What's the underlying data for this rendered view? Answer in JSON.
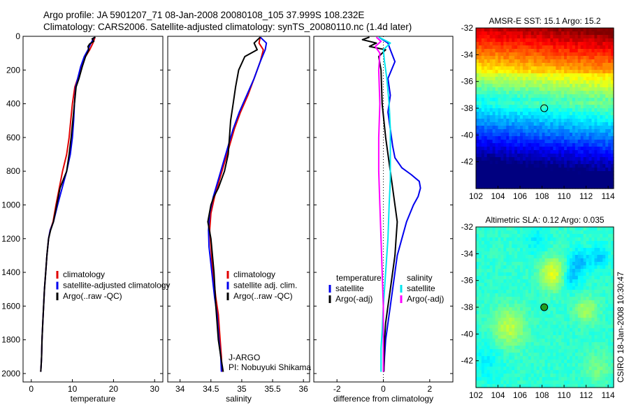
{
  "header": {
    "line1": "Argo profile: JA 5901207_71 08-Jan-2008 20080108_105 37.999S 108.232E",
    "line2": "Climatology: CARS2006. Satellite-adjusted climatology: synTS_20080110.nc (1.4d later)"
  },
  "side_label": "CSIRO 18-Jan-2008 10:30:47",
  "colors": {
    "red": "#e00000",
    "blue": "#0000ee",
    "black": "#000000",
    "cyan": "#00e5ee",
    "magenta": "#ff00ff"
  },
  "chart_data": [
    {
      "id": "temperature",
      "type": "line",
      "xlabel": "temperature",
      "ylabel": "",
      "xlim": [
        -2,
        32
      ],
      "ylim": [
        0,
        2050
      ],
      "y_inverted": true,
      "xticks": [
        0,
        10,
        20,
        30
      ],
      "yticks": [
        0,
        200,
        400,
        600,
        800,
        1000,
        1200,
        1400,
        1600,
        1800,
        2000
      ],
      "legend": [
        "climatology",
        "satellite-adjusted climatology",
        "Argo(..raw -QC)"
      ],
      "series": [
        {
          "name": "climatology",
          "color": "red",
          "x": [
            15.5,
            15.3,
            15,
            14.2,
            13.2,
            12.2,
            11.3,
            10.6,
            10,
            9.6,
            9.2,
            8.6,
            7.6,
            6.8,
            6,
            5.3,
            4.6,
            4.2,
            3.8,
            3.5,
            3.2,
            3,
            2.8,
            2.6,
            2.5,
            2.4,
            2.3
          ],
          "y": [
            5,
            20,
            40,
            80,
            120,
            180,
            250,
            300,
            400,
            500,
            600,
            700,
            800,
            900,
            1000,
            1100,
            1150,
            1200,
            1300,
            1400,
            1500,
            1600,
            1700,
            1800,
            1900,
            1950,
            1990
          ]
        },
        {
          "name": "satellite-adjusted climatology",
          "color": "blue",
          "x": [
            15.3,
            15,
            14.5,
            13.8,
            12.9,
            12,
            11.3,
            10.8,
            10.5,
            10.3,
            10,
            9.5,
            8.6,
            7.5,
            6.4,
            5.4,
            4.6,
            4.2,
            3.8,
            3.5,
            3.2,
            3,
            2.8,
            2.6,
            2.5,
            2.4,
            2.3
          ],
          "y": [
            5,
            20,
            40,
            80,
            120,
            180,
            250,
            300,
            400,
            500,
            600,
            700,
            800,
            900,
            1000,
            1100,
            1150,
            1200,
            1300,
            1400,
            1500,
            1600,
            1700,
            1800,
            1900,
            1950,
            1990
          ]
        },
        {
          "name": "Argo(..raw -QC)",
          "color": "black",
          "x": [
            15.6,
            14.8,
            15.2,
            14.2,
            13.8,
            14,
            13.2,
            12.4,
            11.6,
            10.9,
            10.5,
            10.1,
            9.7,
            9.2,
            8.6,
            7.8,
            7,
            6.2,
            5.4,
            4.7,
            4.2,
            3.8,
            3.5,
            3.2,
            3,
            2.8,
            2.6,
            2.5,
            2.4,
            2.3
          ],
          "y": [
            5,
            15,
            30,
            45,
            60,
            80,
            120,
            180,
            250,
            300,
            400,
            500,
            600,
            700,
            800,
            850,
            900,
            1000,
            1100,
            1150,
            1200,
            1300,
            1400,
            1500,
            1600,
            1700,
            1800,
            1900,
            1950,
            1990
          ]
        }
      ]
    },
    {
      "id": "salinity",
      "type": "line",
      "xlabel": "salinity",
      "ylabel": "",
      "xlim": [
        33.8,
        36.1
      ],
      "ylim": [
        0,
        2050
      ],
      "y_inverted": true,
      "xticks": [
        34,
        34.5,
        35,
        35.5,
        36
      ],
      "yticks": [
        0,
        200,
        400,
        600,
        800,
        1000,
        1200,
        1400,
        1600,
        1800,
        2000
      ],
      "legend": [
        "climatology",
        "satellite adj. clim.",
        "Argo(..raw -QC)"
      ],
      "series": [
        {
          "name": "climatology",
          "color": "red",
          "x": [
            35.3,
            35.28,
            35.35,
            35.3,
            35.2,
            35.1,
            34.98,
            34.88,
            34.8,
            34.72,
            34.64,
            34.56,
            34.5,
            34.48,
            34.5,
            34.52,
            34.55,
            34.58,
            34.62,
            34.65,
            34.67,
            34.68
          ],
          "y": [
            5,
            40,
            80,
            150,
            250,
            350,
            450,
            550,
            650,
            750,
            850,
            950,
            1050,
            1150,
            1250,
            1350,
            1450,
            1550,
            1650,
            1800,
            1900,
            1990
          ]
        },
        {
          "name": "satellite adj. clim.",
          "color": "blue",
          "x": [
            35.3,
            35.4,
            35.38,
            35.3,
            35.2,
            35.08,
            34.96,
            34.86,
            34.78,
            34.7,
            34.62,
            34.54,
            34.48,
            34.46,
            34.47,
            34.5,
            34.53,
            34.56,
            34.6,
            34.63,
            34.66,
            34.67
          ],
          "y": [
            5,
            40,
            80,
            150,
            250,
            350,
            450,
            550,
            650,
            750,
            850,
            950,
            1050,
            1150,
            1250,
            1350,
            1450,
            1550,
            1650,
            1800,
            1900,
            1990
          ]
        },
        {
          "name": "Argo(..raw -QC)",
          "color": "black",
          "x": [
            35.3,
            35.2,
            35.25,
            35.05,
            34.95,
            34.9,
            34.86,
            34.82,
            34.8,
            34.78,
            34.72,
            34.62,
            34.55,
            34.5,
            34.45,
            34.5,
            34.55,
            34.58,
            34.62,
            34.66,
            34.7
          ],
          "y": [
            5,
            40,
            80,
            120,
            200,
            300,
            400,
            500,
            600,
            700,
            800,
            900,
            950,
            1000,
            1100,
            1200,
            1400,
            1600,
            1800,
            1900,
            1990
          ]
        }
      ]
    },
    {
      "id": "difference",
      "type": "line",
      "xlabel": "difference from climatology",
      "ylabel": "",
      "xlim": [
        -3,
        3
      ],
      "ylim": [
        0,
        2050
      ],
      "y_inverted": true,
      "xticks": [
        -2,
        0,
        2
      ],
      "yticks": [
        0,
        200,
        400,
        600,
        800,
        1000,
        1200,
        1400,
        1600,
        1800,
        2000
      ],
      "legend_title_left": "temperature",
      "legend_title_right": "salinity",
      "legend": [
        "satellite",
        "Argo(-adj)",
        "satellite",
        "Argo(-adj)"
      ],
      "series": [
        {
          "name": "satellite",
          "color": "blue",
          "x": [
            -0.2,
            0.2,
            0.3,
            0.5,
            0.2,
            0.3,
            0.2,
            0.3,
            0.4,
            0.5,
            0.8,
            1.2,
            1.55,
            1.6,
            1.5,
            1.3,
            1,
            0.8,
            0.6,
            0.5,
            0.4,
            0.3,
            0.2,
            0.1,
            0.05,
            0.02
          ],
          "y": [
            5,
            40,
            80,
            150,
            250,
            350,
            450,
            550,
            650,
            720,
            780,
            820,
            860,
            900,
            950,
            1000,
            1100,
            1200,
            1300,
            1400,
            1500,
            1600,
            1700,
            1800,
            1900,
            1990
          ]
        },
        {
          "name": "Argo(-adj)",
          "color": "black",
          "x": [
            -0.6,
            -0.9,
            -0.3,
            -0.6,
            0.1,
            -0.2,
            -0.1,
            -0.05,
            0.1,
            0.3,
            0.4,
            0.5,
            0.6,
            0.55,
            0.5,
            0.4,
            0.3,
            0.2,
            0.1,
            0.05,
            0.02
          ],
          "y": [
            5,
            20,
            40,
            60,
            80,
            120,
            200,
            400,
            600,
            800,
            900,
            1000,
            1100,
            1200,
            1300,
            1400,
            1500,
            1600,
            1700,
            1800,
            1990
          ]
        },
        {
          "name": "satellite",
          "color": "cyan",
          "x": [
            -0.2,
            0.3,
            0,
            0.05,
            0.15,
            0.25,
            0.3,
            0.3,
            0.3,
            0.25,
            0.2,
            0.1,
            0,
            -0.05,
            -0.1,
            -0.1,
            -0.1
          ],
          "y": [
            5,
            40,
            80,
            150,
            250,
            400,
            550,
            700,
            850,
            1000,
            1200,
            1400,
            1600,
            1750,
            1850,
            1950,
            1990
          ]
        },
        {
          "name": "Argo(-adj)",
          "color": "magenta",
          "x": [
            -0.3,
            -0.1,
            -0.35,
            -0.15,
            -0.2,
            -0.15,
            -0.2,
            -0.2,
            -0.15,
            -0.1,
            -0.05,
            0,
            0,
            0,
            0
          ],
          "y": [
            5,
            30,
            60,
            100,
            200,
            400,
            600,
            800,
            1000,
            1200,
            1400,
            1600,
            1800,
            1900,
            1990
          ]
        }
      ]
    },
    {
      "id": "sst_map",
      "type": "heatmap",
      "title": "AMSR-E SST: 15.1 Argo: 15.2",
      "xlim": [
        102,
        114.5
      ],
      "ylim": [
        -44,
        -32
      ],
      "xticks": [
        102,
        104,
        106,
        108,
        110,
        112,
        114
      ],
      "yticks": [
        -32,
        -34,
        -36,
        -38,
        -40,
        -42
      ],
      "marker": {
        "x": 108.2,
        "y": -38.0
      }
    },
    {
      "id": "sla_map",
      "type": "heatmap",
      "title": "Altimetric SLA: 0.12 Argo: 0.035",
      "xlim": [
        102,
        114.5
      ],
      "ylim": [
        -44,
        -32
      ],
      "xticks": [
        102,
        104,
        106,
        108,
        110,
        112,
        114
      ],
      "yticks": [
        -32,
        -34,
        -36,
        -38,
        -40,
        -42
      ],
      "marker": {
        "x": 108.2,
        "y": -38.0
      }
    }
  ]
}
